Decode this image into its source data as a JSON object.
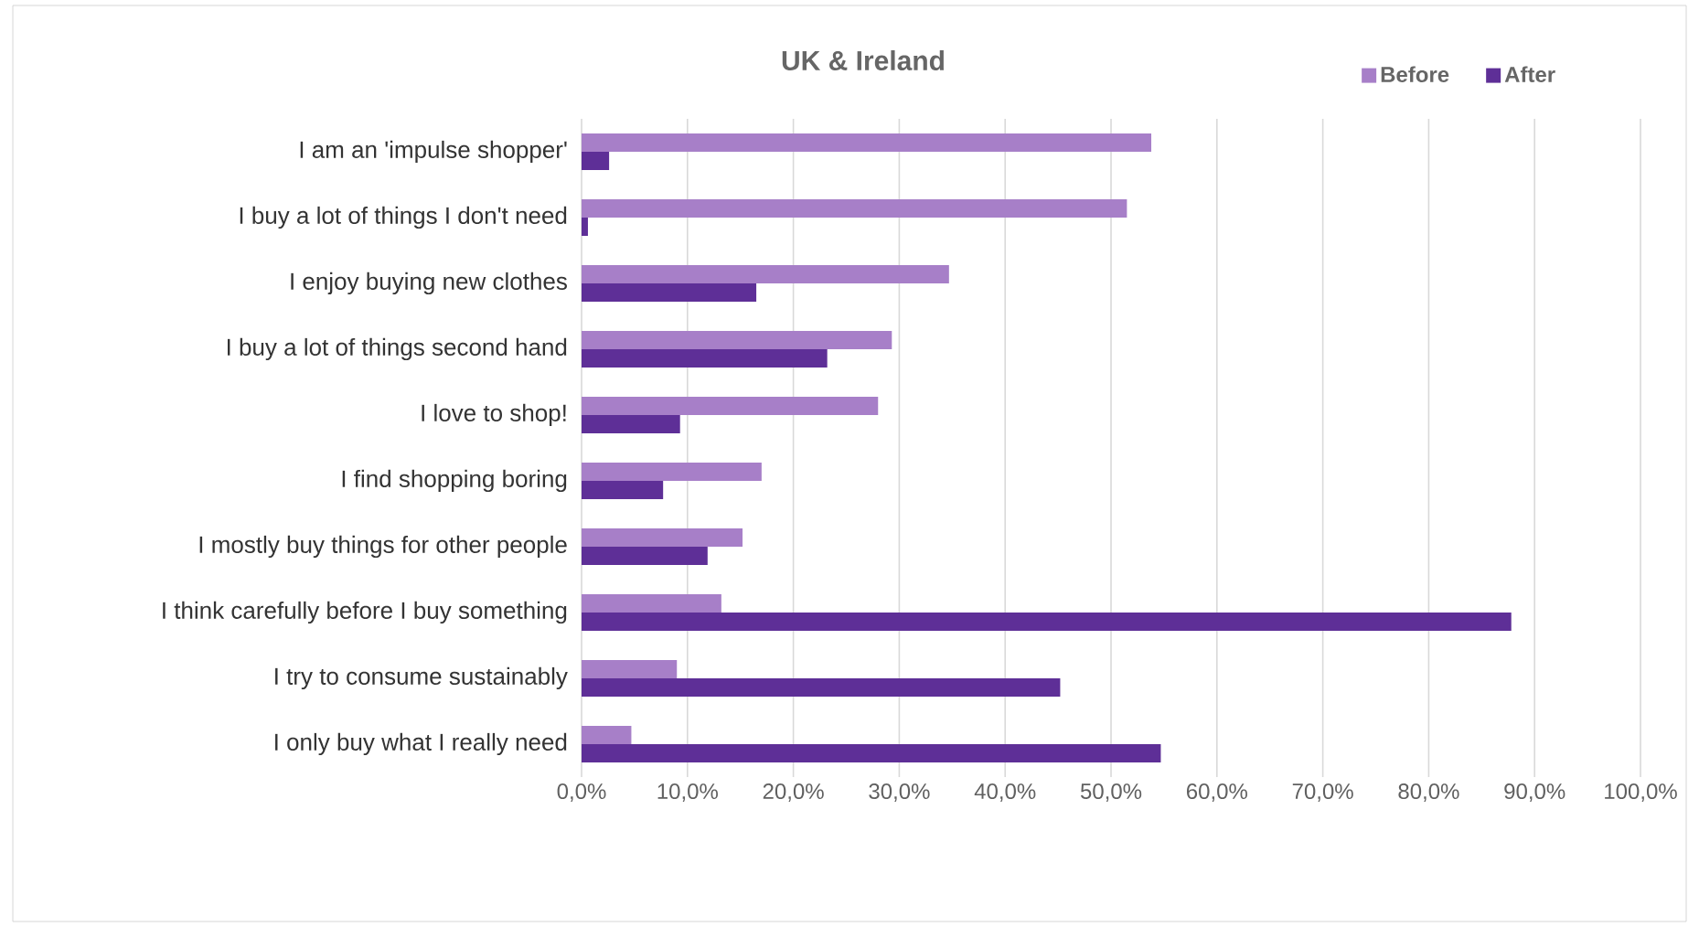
{
  "chart_data": {
    "type": "bar",
    "orientation": "horizontal",
    "title": "UK & Ireland",
    "categories": [
      "I am an 'impulse shopper'",
      "I buy a lot of things I don't need",
      "I enjoy buying new clothes",
      "I buy a lot of things second hand",
      "I love to shop!",
      "I find shopping boring",
      "I mostly buy things for other people",
      "I think carefully before I buy something",
      "I try to consume sustainably",
      "I only buy what I really need"
    ],
    "series": [
      {
        "name": "Before",
        "color": "#a77fc8",
        "values": [
          53.8,
          51.5,
          34.7,
          29.3,
          28.0,
          17.0,
          15.2,
          13.2,
          9.0,
          4.7
        ]
      },
      {
        "name": "After",
        "color": "#5e2f97",
        "values": [
          2.6,
          0.6,
          16.5,
          23.2,
          9.3,
          7.7,
          11.9,
          87.8,
          45.2,
          54.7
        ]
      }
    ],
    "xlim": [
      0,
      100
    ],
    "xticks": [
      {
        "value": 0,
        "label": "0,0%"
      },
      {
        "value": 10,
        "label": "10,0%"
      },
      {
        "value": 20,
        "label": "20,0%"
      },
      {
        "value": 30,
        "label": "30,0%"
      },
      {
        "value": 40,
        "label": "40,0%"
      },
      {
        "value": 50,
        "label": "50,0%"
      },
      {
        "value": 60,
        "label": "60,0%"
      },
      {
        "value": 70,
        "label": "70,0%"
      },
      {
        "value": 80,
        "label": "80,0%"
      },
      {
        "value": 90,
        "label": "90,0%"
      },
      {
        "value": 100,
        "label": "100,0%"
      }
    ],
    "grid": "x",
    "legend": "top right"
  }
}
